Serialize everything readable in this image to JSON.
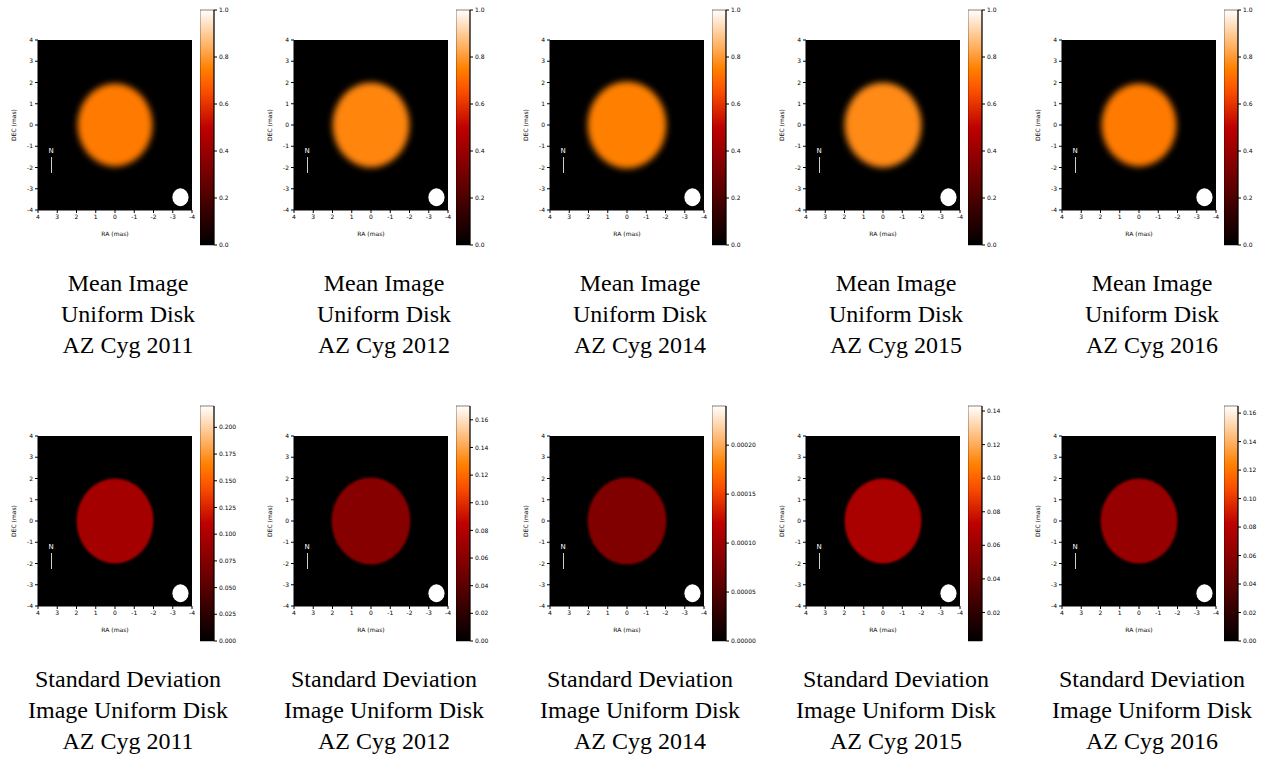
{
  "chart_data": [
    {
      "type": "heatmap",
      "caption": [
        "Mean Image",
        "Uniform Disk",
        "AZ Cyg 2011"
      ],
      "x_label": "RA (mas)",
      "y_label": "DEC (mas)",
      "xlim": [
        4,
        -4
      ],
      "xticks": [
        4,
        3,
        2,
        1,
        0,
        -1,
        -2,
        -3,
        -4
      ],
      "ylim": [
        -4,
        4
      ],
      "yticks": [
        -4,
        -3,
        -2,
        -1,
        0,
        1,
        2,
        3,
        4
      ],
      "north_label": "N",
      "disk": {
        "x": 0,
        "y": 0,
        "radius": 1.95,
        "value": 0.74
      },
      "beam": {
        "x": -3.4,
        "y": -3.4,
        "radius": 0.42
      },
      "colorbar": {
        "range": [
          0,
          1
        ],
        "ticks": [
          {
            "value": 0,
            "label": "0.0"
          },
          {
            "value": 0.2,
            "label": "0.2"
          },
          {
            "value": 0.4,
            "label": "0.4"
          },
          {
            "value": 0.6,
            "label": "0.6"
          },
          {
            "value": 0.8,
            "label": "0.8"
          },
          {
            "value": 1,
            "label": "1.0"
          }
        ]
      }
    },
    {
      "type": "heatmap",
      "caption": [
        "Mean Image",
        "Uniform Disk",
        "AZ Cyg 2012"
      ],
      "x_label": "RA (mas)",
      "y_label": "DEC (mas)",
      "xlim": [
        4,
        -4
      ],
      "xticks": [
        4,
        3,
        2,
        1,
        0,
        -1,
        -2,
        -3,
        -4
      ],
      "ylim": [
        -4,
        4
      ],
      "yticks": [
        -4,
        -3,
        -2,
        -1,
        0,
        1,
        2,
        3,
        4
      ],
      "north_label": "N",
      "disk": {
        "x": 0,
        "y": 0,
        "radius": 2.0,
        "value": 0.76
      },
      "beam": {
        "x": -3.4,
        "y": -3.4,
        "radius": 0.42
      },
      "colorbar": {
        "range": [
          0,
          1
        ],
        "ticks": [
          {
            "value": 0,
            "label": "0.0"
          },
          {
            "value": 0.2,
            "label": "0.2"
          },
          {
            "value": 0.4,
            "label": "0.4"
          },
          {
            "value": 0.6,
            "label": "0.6"
          },
          {
            "value": 0.8,
            "label": "0.8"
          },
          {
            "value": 1,
            "label": "1.0"
          }
        ]
      }
    },
    {
      "type": "heatmap",
      "caption": [
        "Mean Image",
        "Uniform Disk",
        "AZ Cyg 2014"
      ],
      "x_label": "RA (mas)",
      "y_label": "DEC (mas)",
      "xlim": [
        4,
        -4
      ],
      "xticks": [
        4,
        3,
        2,
        1,
        0,
        -1,
        -2,
        -3,
        -4
      ],
      "ylim": [
        -4,
        4
      ],
      "yticks": [
        -4,
        -3,
        -2,
        -1,
        0,
        1,
        2,
        3,
        4
      ],
      "north_label": "N",
      "disk": {
        "x": 0,
        "y": 0,
        "radius": 2.05,
        "value": 0.75
      },
      "beam": {
        "x": -3.4,
        "y": -3.4,
        "radius": 0.42
      },
      "colorbar": {
        "range": [
          0,
          1
        ],
        "ticks": [
          {
            "value": 0,
            "label": "0.0"
          },
          {
            "value": 0.2,
            "label": "0.2"
          },
          {
            "value": 0.4,
            "label": "0.4"
          },
          {
            "value": 0.6,
            "label": "0.6"
          },
          {
            "value": 0.8,
            "label": "0.8"
          },
          {
            "value": 1,
            "label": "1.0"
          }
        ]
      }
    },
    {
      "type": "heatmap",
      "caption": [
        "Mean Image",
        "Uniform Disk",
        "AZ Cyg 2015"
      ],
      "x_label": "RA (mas)",
      "y_label": "DEC (mas)",
      "xlim": [
        4,
        -4
      ],
      "xticks": [
        4,
        3,
        2,
        1,
        0,
        -1,
        -2,
        -3,
        -4
      ],
      "ylim": [
        -4,
        4
      ],
      "yticks": [
        -4,
        -3,
        -2,
        -1,
        0,
        1,
        2,
        3,
        4
      ],
      "north_label": "N",
      "disk": {
        "x": 0,
        "y": 0,
        "radius": 2.0,
        "value": 0.77
      },
      "beam": {
        "x": -3.4,
        "y": -3.4,
        "radius": 0.42
      },
      "colorbar": {
        "range": [
          0,
          1
        ],
        "ticks": [
          {
            "value": 0,
            "label": "0.0"
          },
          {
            "value": 0.2,
            "label": "0.2"
          },
          {
            "value": 0.4,
            "label": "0.4"
          },
          {
            "value": 0.6,
            "label": "0.6"
          },
          {
            "value": 0.8,
            "label": "0.8"
          },
          {
            "value": 1,
            "label": "1.0"
          }
        ]
      }
    },
    {
      "type": "heatmap",
      "caption": [
        "Mean Image",
        "Uniform Disk",
        "AZ Cyg 2016"
      ],
      "x_label": "RA (mas)",
      "y_label": "DEC (mas)",
      "xlim": [
        4,
        -4
      ],
      "xticks": [
        4,
        3,
        2,
        1,
        0,
        -1,
        -2,
        -3,
        -4
      ],
      "ylim": [
        -4,
        4
      ],
      "yticks": [
        -4,
        -3,
        -2,
        -1,
        0,
        1,
        2,
        3,
        4
      ],
      "north_label": "N",
      "disk": {
        "x": 0,
        "y": 0,
        "radius": 1.95,
        "value": 0.74
      },
      "beam": {
        "x": -3.4,
        "y": -3.4,
        "radius": 0.42
      },
      "colorbar": {
        "range": [
          0,
          1
        ],
        "ticks": [
          {
            "value": 0,
            "label": "0.0"
          },
          {
            "value": 0.2,
            "label": "0.2"
          },
          {
            "value": 0.4,
            "label": "0.4"
          },
          {
            "value": 0.6,
            "label": "0.6"
          },
          {
            "value": 0.8,
            "label": "0.8"
          },
          {
            "value": 1,
            "label": "1.0"
          }
        ]
      }
    },
    {
      "type": "heatmap",
      "caption": [
        "Standard Deviation",
        "Image Uniform Disk",
        "AZ Cyg 2011"
      ],
      "x_label": "RA (mas)",
      "y_label": "DEC (mas)",
      "xlim": [
        4,
        -4
      ],
      "xticks": [
        4,
        3,
        2,
        1,
        0,
        -1,
        -2,
        -3,
        -4
      ],
      "ylim": [
        -4,
        4
      ],
      "yticks": [
        -4,
        -3,
        -2,
        -1,
        0,
        1,
        2,
        3,
        4
      ],
      "north_label": "N",
      "disk": {
        "x": 0,
        "y": 0,
        "radius": 2.0,
        "value": 0.095
      },
      "beam": {
        "x": -3.4,
        "y": -3.4,
        "radius": 0.42
      },
      "colorbar": {
        "range": [
          0,
          0.22
        ],
        "ticks": [
          {
            "value": 0,
            "label": "0.000"
          },
          {
            "value": 0.025,
            "label": "0.025"
          },
          {
            "value": 0.05,
            "label": "0.050"
          },
          {
            "value": 0.075,
            "label": "0.075"
          },
          {
            "value": 0.1,
            "label": "0.100"
          },
          {
            "value": 0.125,
            "label": "0.125"
          },
          {
            "value": 0.15,
            "label": "0.150"
          },
          {
            "value": 0.175,
            "label": "0.175"
          },
          {
            "value": 0.2,
            "label": "0.200"
          }
        ]
      }
    },
    {
      "type": "heatmap",
      "caption": [
        "Standard Deviation",
        "Image Uniform Disk",
        "AZ Cyg 2012"
      ],
      "x_label": "RA (mas)",
      "y_label": "DEC (mas)",
      "xlim": [
        4,
        -4
      ],
      "xticks": [
        4,
        3,
        2,
        1,
        0,
        -1,
        -2,
        -3,
        -4
      ],
      "ylim": [
        -4,
        4
      ],
      "yticks": [
        -4,
        -3,
        -2,
        -1,
        0,
        1,
        2,
        3,
        4
      ],
      "north_label": "N",
      "disk": {
        "x": 0,
        "y": 0,
        "radius": 2.05,
        "value": 0.06
      },
      "beam": {
        "x": -3.4,
        "y": -3.4,
        "radius": 0.42
      },
      "colorbar": {
        "range": [
          0,
          0.17
        ],
        "ticks": [
          {
            "value": 0,
            "label": "0.00"
          },
          {
            "value": 0.02,
            "label": "0.02"
          },
          {
            "value": 0.04,
            "label": "0.04"
          },
          {
            "value": 0.06,
            "label": "0.06"
          },
          {
            "value": 0.08,
            "label": "0.08"
          },
          {
            "value": 0.1,
            "label": "0.10"
          },
          {
            "value": 0.12,
            "label": "0.12"
          },
          {
            "value": 0.14,
            "label": "0.14"
          },
          {
            "value": 0.16,
            "label": "0.16"
          }
        ]
      }
    },
    {
      "type": "heatmap",
      "caption": [
        "Standard Deviation",
        "Image Uniform Disk",
        "AZ Cyg 2014"
      ],
      "x_label": "RA (mas)",
      "y_label": "DEC (mas)",
      "xlim": [
        4,
        -4
      ],
      "xticks": [
        4,
        3,
        2,
        1,
        0,
        -1,
        -2,
        -3,
        -4
      ],
      "ylim": [
        -4,
        4
      ],
      "yticks": [
        -4,
        -3,
        -2,
        -1,
        0,
        1,
        2,
        3,
        4
      ],
      "north_label": "N",
      "disk": {
        "x": 0,
        "y": 0,
        "radius": 2.05,
        "value": 8e-05
      },
      "beam": {
        "x": -3.4,
        "y": -3.4,
        "radius": 0.42
      },
      "colorbar": {
        "range": [
          0,
          0.00024
        ],
        "ticks": [
          {
            "value": 0,
            "label": "0.00000"
          },
          {
            "value": 5e-05,
            "label": "0.00005"
          },
          {
            "value": 0.0001,
            "label": "0.00010"
          },
          {
            "value": 0.00015,
            "label": "0.00015"
          },
          {
            "value": 0.0002,
            "label": "0.00020"
          }
        ]
      }
    },
    {
      "type": "heatmap",
      "caption": [
        "Standard Deviation",
        "Image Uniform Disk",
        "AZ Cyg 2015"
      ],
      "x_label": "RA (mas)",
      "y_label": "DEC (mas)",
      "xlim": [
        4,
        -4
      ],
      "xticks": [
        4,
        3,
        2,
        1,
        0,
        -1,
        -2,
        -3,
        -4
      ],
      "ylim": [
        -4,
        4
      ],
      "yticks": [
        -4,
        -3,
        -2,
        -1,
        0,
        1,
        2,
        3,
        4
      ],
      "north_label": "N",
      "disk": {
        "x": 0,
        "y": 0,
        "radius": 2.0,
        "value": 0.065
      },
      "beam": {
        "x": -3.4,
        "y": -3.4,
        "radius": 0.42
      },
      "colorbar": {
        "range": [
          0.003,
          0.143
        ],
        "ticks": [
          {
            "value": 0.02,
            "label": "0.02"
          },
          {
            "value": 0.04,
            "label": "0.04"
          },
          {
            "value": 0.06,
            "label": "0.06"
          },
          {
            "value": 0.08,
            "label": "0.08"
          },
          {
            "value": 0.1,
            "label": "0.10"
          },
          {
            "value": 0.12,
            "label": "0.12"
          },
          {
            "value": 0.14,
            "label": "0.14"
          }
        ]
      }
    },
    {
      "type": "heatmap",
      "caption": [
        "Standard Deviation",
        "Image Uniform Disk",
        "AZ Cyg 2016"
      ],
      "x_label": "RA (mas)",
      "y_label": "DEC (mas)",
      "xlim": [
        4,
        -4
      ],
      "xticks": [
        4,
        3,
        2,
        1,
        0,
        -1,
        -2,
        -3,
        -4
      ],
      "ylim": [
        -4,
        4
      ],
      "yticks": [
        -4,
        -3,
        -2,
        -1,
        0,
        1,
        2,
        3,
        4
      ],
      "north_label": "N",
      "disk": {
        "x": 0,
        "y": 0,
        "radius": 2.0,
        "value": 0.065
      },
      "beam": {
        "x": -3.4,
        "y": -3.4,
        "radius": 0.42
      },
      "colorbar": {
        "range": [
          0,
          0.165
        ],
        "ticks": [
          {
            "value": 0,
            "label": "0.00"
          },
          {
            "value": 0.02,
            "label": "0.02"
          },
          {
            "value": 0.04,
            "label": "0.04"
          },
          {
            "value": 0.06,
            "label": "0.06"
          },
          {
            "value": 0.08,
            "label": "0.08"
          },
          {
            "value": 0.1,
            "label": "0.10"
          },
          {
            "value": 0.12,
            "label": "0.12"
          },
          {
            "value": 0.14,
            "label": "0.14"
          },
          {
            "value": 0.16,
            "label": "0.16"
          }
        ]
      }
    }
  ]
}
